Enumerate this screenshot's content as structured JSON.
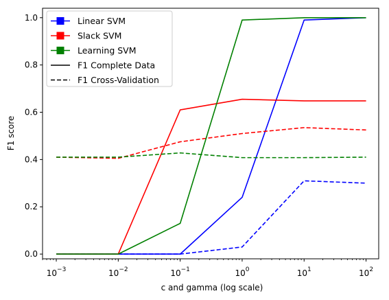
{
  "chart_data": {
    "type": "line",
    "xlabel": "c and gamma (log scale)",
    "ylabel": "F1 score",
    "xscale": "log",
    "xlim": [
      0.0006,
      160
    ],
    "ylim": [
      -0.02,
      1.04
    ],
    "x": [
      0.001,
      0.01,
      0.1,
      1,
      10,
      100
    ],
    "x_ticks": [
      {
        "value": 0.001,
        "base": "10",
        "exp": "−3"
      },
      {
        "value": 0.01,
        "base": "10",
        "exp": "−2"
      },
      {
        "value": 0.1,
        "base": "10",
        "exp": "−1"
      },
      {
        "value": 1,
        "base": "10",
        "exp": "0"
      },
      {
        "value": 10,
        "base": "10",
        "exp": "1"
      },
      {
        "value": 100,
        "base": "10",
        "exp": "2"
      }
    ],
    "y_ticks": [
      {
        "value": 0.0,
        "label": "0.0"
      },
      {
        "value": 0.2,
        "label": "0.2"
      },
      {
        "value": 0.4,
        "label": "0.4"
      },
      {
        "value": 0.6,
        "label": "0.6"
      },
      {
        "value": 0.8,
        "label": "0.8"
      },
      {
        "value": 1.0,
        "label": "1.0"
      }
    ],
    "grid": false,
    "legend_position": "top-left",
    "series": [
      {
        "name": "Linear SVM",
        "metric": "complete",
        "color": "#0000ff",
        "style": "solid",
        "values": [
          0.0,
          0.0,
          0.0,
          0.24,
          0.99,
          1.0
        ]
      },
      {
        "name": "Linear SVM",
        "metric": "cv",
        "color": "#0000ff",
        "style": "dashed",
        "values": [
          0.0,
          0.0,
          0.0,
          0.03,
          0.31,
          0.3
        ]
      },
      {
        "name": "Slack SVM",
        "metric": "complete",
        "color": "#ff0000",
        "style": "solid",
        "values": [
          0.0,
          0.0,
          0.61,
          0.655,
          0.648,
          0.648
        ]
      },
      {
        "name": "Slack SVM",
        "metric": "cv",
        "color": "#ff0000",
        "style": "dashed",
        "values": [
          0.41,
          0.405,
          0.475,
          0.51,
          0.535,
          0.525
        ]
      },
      {
        "name": "Learning SVM",
        "metric": "complete",
        "color": "#008000",
        "style": "solid",
        "values": [
          0.0,
          0.0,
          0.13,
          0.99,
          1.0,
          1.0
        ]
      },
      {
        "name": "Learning SVM",
        "metric": "cv",
        "color": "#008000",
        "style": "dashed",
        "values": [
          0.41,
          0.41,
          0.428,
          0.408,
          0.408,
          0.41
        ]
      }
    ],
    "legend": [
      {
        "label": "Linear SVM",
        "kind": "square",
        "color": "#0000ff"
      },
      {
        "label": "Slack SVM",
        "kind": "square",
        "color": "#ff0000"
      },
      {
        "label": "Learning SVM",
        "kind": "square",
        "color": "#008000"
      },
      {
        "label": "F1 Complete Data",
        "kind": "line",
        "style": "solid",
        "color": "#000000"
      },
      {
        "label": "F1 Cross-Validation",
        "kind": "line",
        "style": "dashed",
        "color": "#000000"
      }
    ]
  }
}
